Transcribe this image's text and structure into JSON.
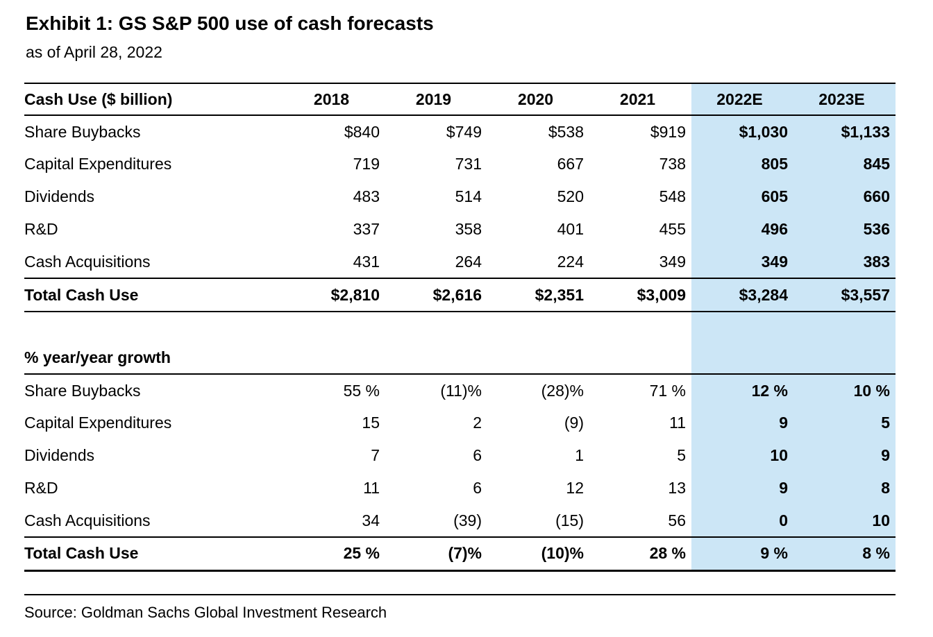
{
  "exhibit": {
    "title": "Exhibit 1: GS S&P 500 use of cash forecasts",
    "date_note": "as of April 28, 2022",
    "source": "Source: Goldman Sachs Global Investment Research"
  },
  "colors": {
    "highlight": "#cce6f6"
  },
  "chart_data": {
    "type": "table",
    "title": "Exhibit 1: GS S&P 500 use of cash forecasts",
    "subtitle": "as of April 28, 2022",
    "header": [
      "Cash Use ($ billion)",
      "2018",
      "2019",
      "2020",
      "2021",
      "2022E",
      "2023E"
    ],
    "highlight_columns": [
      "2022E",
      "2023E"
    ],
    "section1": {
      "rows": [
        {
          "label": "Share Buybacks",
          "v": [
            "$840",
            "$749",
            "$538",
            "$919",
            "$1,030",
            "$1,133"
          ]
        },
        {
          "label": "Capital Expenditures",
          "v": [
            "719",
            "731",
            "667",
            "738",
            "805",
            "845"
          ]
        },
        {
          "label": "Dividends",
          "v": [
            "483",
            "514",
            "520",
            "548",
            "605",
            "660"
          ]
        },
        {
          "label": "R&D",
          "v": [
            "337",
            "358",
            "401",
            "455",
            "496",
            "536"
          ]
        },
        {
          "label": "Cash Acquisitions",
          "v": [
            "431",
            "264",
            "224",
            "349",
            "349",
            "383"
          ]
        }
      ],
      "total": {
        "label": "Total Cash Use",
        "v": [
          "$2,810",
          "$2,616",
          "$2,351",
          "$3,009",
          "$3,284",
          "$3,557"
        ]
      }
    },
    "section2": {
      "header": "% year/year growth",
      "rows": [
        {
          "label": "Share Buybacks",
          "v": [
            "55 %",
            "(11)%",
            "(28)%",
            "71 %",
            "12 %",
            "10 %"
          ]
        },
        {
          "label": "Capital Expenditures",
          "v": [
            "15",
            "2",
            "(9)",
            "11",
            "9",
            "5"
          ]
        },
        {
          "label": "Dividends",
          "v": [
            "7",
            "6",
            "1",
            "5",
            "10",
            "9"
          ]
        },
        {
          "label": "R&D",
          "v": [
            "11",
            "6",
            "12",
            "13",
            "9",
            "8"
          ]
        },
        {
          "label": "Cash Acquisitions",
          "v": [
            "34",
            "(39)",
            "(15)",
            "56",
            "0",
            "10"
          ]
        }
      ],
      "total": {
        "label": "Total Cash Use",
        "v": [
          "25 %",
          "(7)%",
          "(10)%",
          "28 %",
          "9 %",
          "8 %"
        ]
      }
    }
  }
}
